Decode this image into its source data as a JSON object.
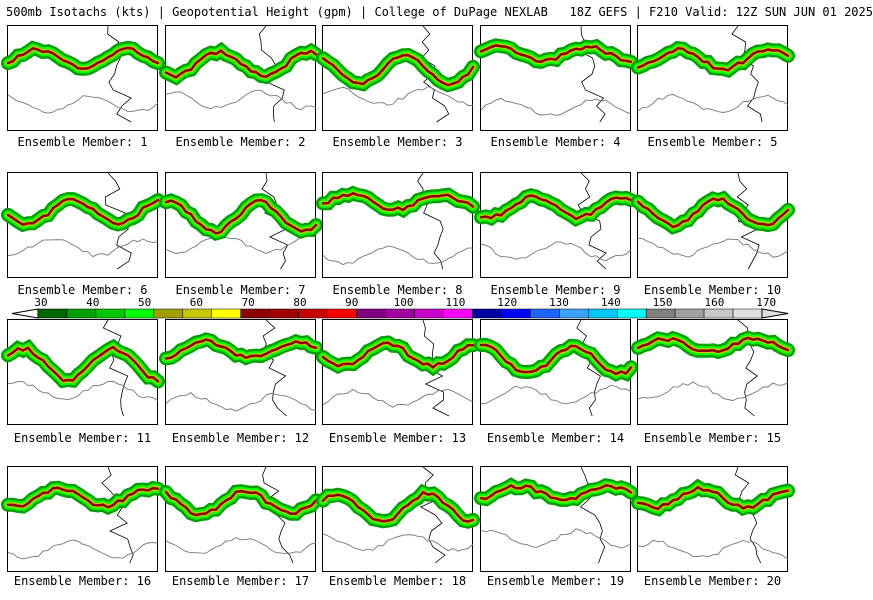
{
  "header": {
    "title": "500mb Isotachs (kts) | Geopotential Height (gpm) | College of DuPage NEXLAB",
    "run": "18Z GEFS | F210 Valid: 12Z SUN JUN 01 2025"
  },
  "colorbar": {
    "tick_labels": [
      "30",
      "40",
      "50",
      "60",
      "70",
      "80",
      "90",
      "100",
      "110",
      "120",
      "130",
      "140",
      "150",
      "160",
      "170"
    ],
    "colors": [
      "#006400",
      "#00a000",
      "#00c800",
      "#00ff00",
      "#a0a000",
      "#c8c800",
      "#ffff00",
      "#8b0000",
      "#a00000",
      "#c80000",
      "#ff0000",
      "#800080",
      "#a000a0",
      "#c800c8",
      "#ff00ff",
      "#0000a0",
      "#0000ff",
      "#1e64ff",
      "#3ca0ff",
      "#00c8ff",
      "#00ffff",
      "#808080",
      "#a0a0a0",
      "#c8c8c8",
      "#e0e0e0"
    ]
  },
  "panels": [
    {
      "label": "Ensemble Member: 1"
    },
    {
      "label": "Ensemble Member: 2"
    },
    {
      "label": "Ensemble Member: 3"
    },
    {
      "label": "Ensemble Member: 4"
    },
    {
      "label": "Ensemble Member: 5"
    },
    {
      "label": "Ensemble Member: 6"
    },
    {
      "label": "Ensemble Member: 7"
    },
    {
      "label": "Ensemble Member: 8"
    },
    {
      "label": "Ensemble Member: 9"
    },
    {
      "label": "Ensemble Member: 10"
    },
    {
      "label": "Ensemble Member: 11"
    },
    {
      "label": "Ensemble Member: 12"
    },
    {
      "label": "Ensemble Member: 13"
    },
    {
      "label": "Ensemble Member: 14"
    },
    {
      "label": "Ensemble Member: 15"
    },
    {
      "label": "Ensemble Member: 16"
    },
    {
      "label": "Ensemble Member: 17"
    },
    {
      "label": "Ensemble Member: 18"
    },
    {
      "label": "Ensemble Member: 19"
    },
    {
      "label": "Ensemble Member: 20"
    }
  ]
}
